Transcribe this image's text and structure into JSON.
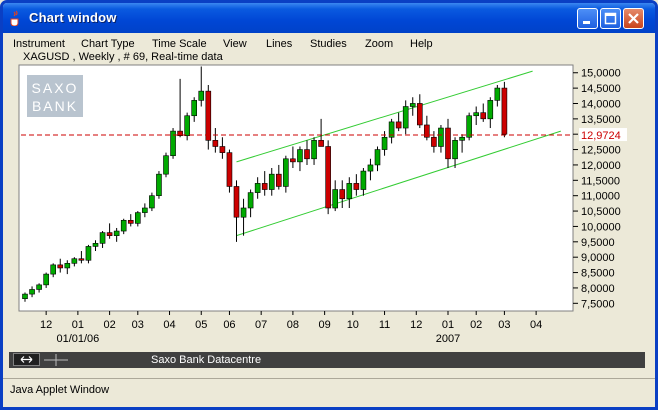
{
  "window": {
    "title": "Chart window",
    "icon": "java-cup-icon",
    "buttons": [
      "minimize-icon",
      "maximize-icon",
      "close-icon"
    ]
  },
  "menu": [
    "Instrument",
    "Chart Type",
    "Time Scale",
    "View",
    "Lines",
    "Studies",
    "Zoom",
    "Help"
  ],
  "chart_header": "XAGUSD , Weekly , # 69, Real-time data",
  "logo": {
    "line1": "SAXO",
    "line2": "BANK"
  },
  "status_bar": {
    "text": "Saxo Bank Datacentre"
  },
  "applet_footer": "Java Applet Window",
  "current_price_label": "12,9724",
  "colors": {
    "up": "#00aa00",
    "down": "#cc0000",
    "channel": "#33cc33",
    "price_line": "#cc0000",
    "title_bar": "#0046d5"
  },
  "chart_data": {
    "type": "candlestick",
    "symbol": "XAGUSD",
    "period": "Weekly",
    "y_ticks": [
      "15,0000",
      "14,5000",
      "14,0000",
      "13,5000",
      "13,0000",
      "12,5000",
      "12,0000",
      "11,5000",
      "11,0000",
      "10,5000",
      "10,0000",
      "9,5000",
      "9,0000",
      "8,5000",
      "8,0000",
      "7,5000"
    ],
    "ylim": [
      7.25,
      15.25
    ],
    "x_ticks": [
      {
        "label": "12",
        "i": 3
      },
      {
        "label": "01",
        "i": 7.5
      },
      {
        "label": "02",
        "i": 12
      },
      {
        "label": "03",
        "i": 16
      },
      {
        "label": "04",
        "i": 20.5
      },
      {
        "label": "05",
        "i": 25
      },
      {
        "label": "06",
        "i": 29
      },
      {
        "label": "07",
        "i": 33.5
      },
      {
        "label": "08",
        "i": 38
      },
      {
        "label": "09",
        "i": 42.5
      },
      {
        "label": "10",
        "i": 46.5
      },
      {
        "label": "11",
        "i": 51
      },
      {
        "label": "12",
        "i": 55.5
      },
      {
        "label": "01",
        "i": 60
      },
      {
        "label": "02",
        "i": 64
      },
      {
        "label": "03",
        "i": 68
      },
      {
        "label": "04",
        "i": 72.5
      }
    ],
    "date_labels": [
      {
        "label": "01/01/06",
        "i": 7.5
      },
      {
        "label": "2007",
        "i": 60
      }
    ],
    "current_price": 12.9724,
    "candles": [
      [
        7.65,
        7.85,
        7.55,
        7.8
      ],
      [
        7.8,
        8.05,
        7.7,
        7.95
      ],
      [
        7.95,
        8.15,
        7.85,
        8.1
      ],
      [
        8.1,
        8.5,
        8.0,
        8.45
      ],
      [
        8.45,
        8.8,
        8.35,
        8.75
      ],
      [
        8.75,
        8.95,
        8.5,
        8.65
      ],
      [
        8.65,
        8.9,
        8.45,
        8.8
      ],
      [
        8.8,
        9.0,
        8.7,
        8.95
      ],
      [
        8.95,
        9.2,
        8.8,
        8.9
      ],
      [
        8.9,
        9.4,
        8.8,
        9.35
      ],
      [
        9.35,
        9.55,
        9.2,
        9.45
      ],
      [
        9.45,
        9.85,
        9.3,
        9.8
      ],
      [
        9.8,
        10.1,
        9.6,
        9.7
      ],
      [
        9.7,
        9.95,
        9.5,
        9.85
      ],
      [
        9.85,
        10.25,
        9.75,
        10.2
      ],
      [
        10.2,
        10.4,
        10.0,
        10.1
      ],
      [
        10.1,
        10.5,
        10.0,
        10.45
      ],
      [
        10.45,
        10.75,
        10.3,
        10.6
      ],
      [
        10.6,
        11.1,
        10.5,
        11.0
      ],
      [
        11.0,
        11.8,
        10.9,
        11.7
      ],
      [
        11.7,
        12.4,
        11.6,
        12.3
      ],
      [
        12.3,
        13.2,
        12.2,
        13.1
      ],
      [
        13.1,
        14.8,
        12.9,
        12.95
      ],
      [
        12.95,
        13.7,
        12.8,
        13.6
      ],
      [
        13.6,
        14.2,
        13.4,
        14.1
      ],
      [
        14.1,
        15.2,
        13.9,
        14.4
      ],
      [
        14.4,
        14.6,
        12.5,
        12.8
      ],
      [
        12.8,
        13.2,
        12.4,
        12.6
      ],
      [
        12.6,
        12.9,
        12.2,
        12.4
      ],
      [
        12.4,
        12.5,
        11.1,
        11.3
      ],
      [
        11.3,
        11.5,
        9.5,
        10.3
      ],
      [
        10.3,
        10.9,
        9.7,
        10.6
      ],
      [
        10.6,
        11.2,
        10.3,
        11.1
      ],
      [
        11.1,
        11.6,
        10.9,
        11.4
      ],
      [
        11.4,
        11.8,
        11.0,
        11.2
      ],
      [
        11.2,
        11.9,
        11.0,
        11.7
      ],
      [
        11.7,
        12.0,
        11.2,
        11.3
      ],
      [
        11.3,
        12.3,
        11.1,
        12.2
      ],
      [
        12.2,
        12.6,
        11.9,
        12.1
      ],
      [
        12.1,
        12.6,
        11.8,
        12.5
      ],
      [
        12.5,
        12.8,
        12.0,
        12.2
      ],
      [
        12.2,
        12.9,
        12.0,
        12.8
      ],
      [
        12.8,
        13.5,
        12.6,
        12.6
      ],
      [
        12.6,
        12.8,
        10.4,
        10.6
      ],
      [
        10.6,
        11.5,
        10.5,
        11.2
      ],
      [
        11.2,
        11.5,
        10.6,
        10.9
      ],
      [
        10.9,
        11.6,
        10.6,
        11.4
      ],
      [
        11.4,
        11.7,
        11.0,
        11.2
      ],
      [
        11.2,
        11.9,
        11.0,
        11.8
      ],
      [
        11.8,
        12.2,
        11.5,
        12.0
      ],
      [
        12.0,
        12.6,
        11.8,
        12.5
      ],
      [
        12.5,
        13.1,
        12.3,
        12.9
      ],
      [
        12.9,
        13.5,
        12.7,
        13.4
      ],
      [
        13.4,
        13.7,
        13.1,
        13.2
      ],
      [
        13.2,
        14.1,
        13.0,
        13.9
      ],
      [
        13.9,
        14.2,
        13.6,
        14.0
      ],
      [
        14.0,
        14.3,
        13.2,
        13.3
      ],
      [
        13.3,
        13.6,
        12.8,
        12.9
      ],
      [
        12.9,
        13.1,
        12.4,
        12.6
      ],
      [
        12.6,
        13.3,
        12.4,
        13.2
      ],
      [
        13.2,
        13.5,
        11.9,
        12.2
      ],
      [
        12.2,
        12.9,
        11.9,
        12.8
      ],
      [
        12.8,
        13.0,
        12.4,
        12.9
      ],
      [
        12.9,
        13.7,
        12.8,
        13.6
      ],
      [
        13.6,
        13.9,
        13.3,
        13.7
      ],
      [
        13.7,
        14.0,
        13.4,
        13.5
      ],
      [
        13.5,
        14.2,
        13.2,
        14.1
      ],
      [
        14.1,
        14.6,
        13.9,
        14.5
      ],
      [
        14.5,
        14.7,
        12.9,
        13.0
      ]
    ],
    "channel_lines": [
      {
        "i1": 30,
        "v1": 12.1,
        "i2": 72,
        "v2": 15.05
      },
      {
        "i1": 30,
        "v1": 9.7,
        "i2": 76,
        "v2": 13.1
      }
    ]
  }
}
